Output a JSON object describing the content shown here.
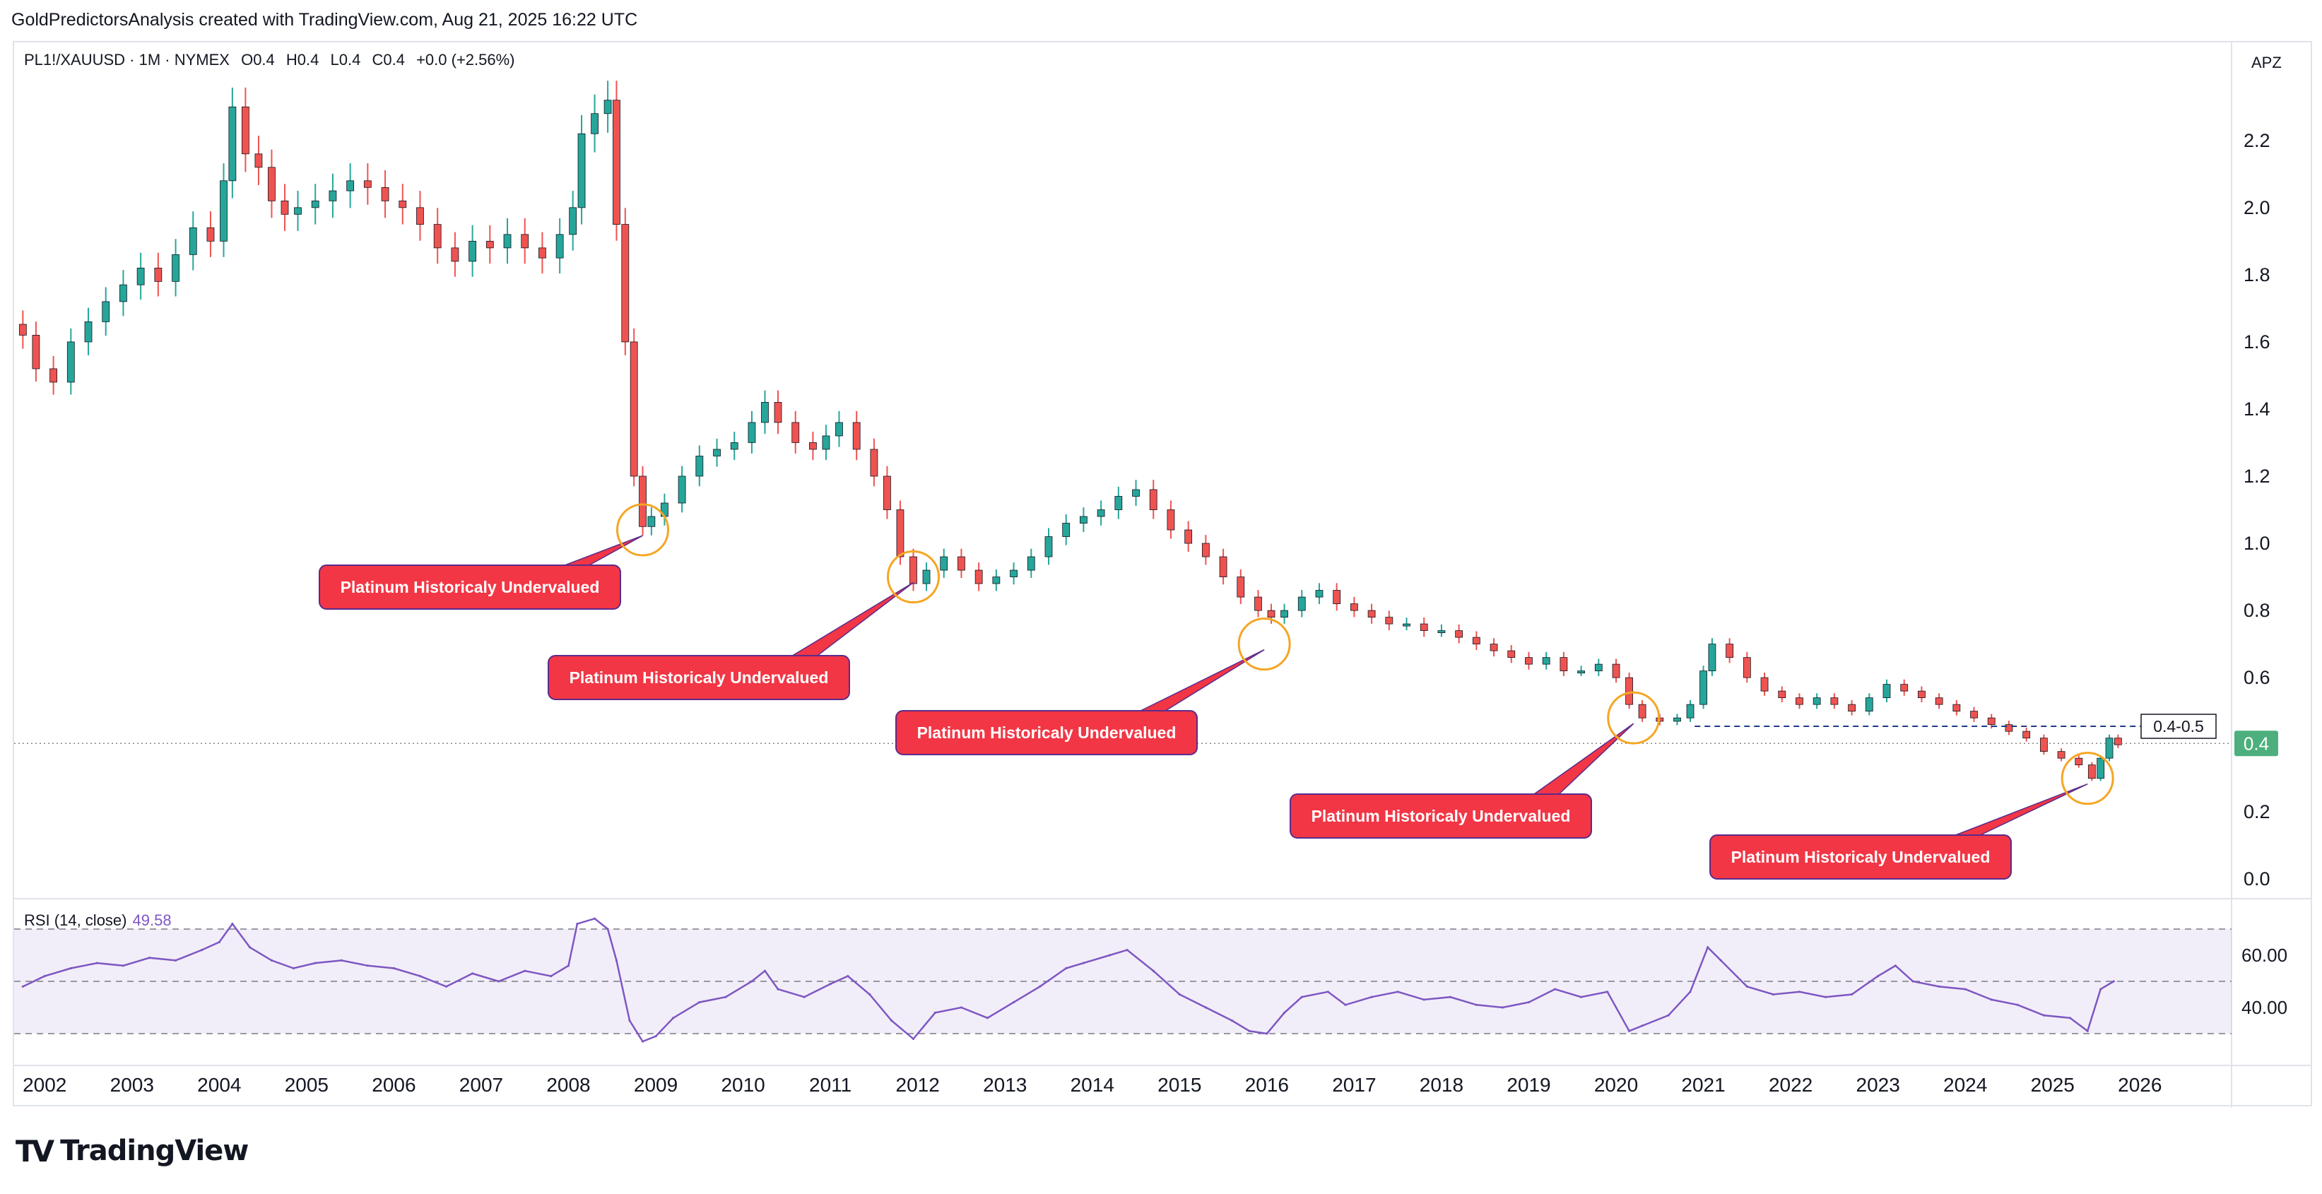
{
  "header": {
    "text": "GoldPredictorsAnalysis created with TradingView.com, Aug 21, 2025 16:22 UTC"
  },
  "legend": {
    "symbol": "PL1!/XAUUSD · 1M · NYMEX",
    "o": "O0.4",
    "h": "H0.4",
    "l": "L0.4",
    "c": "C0.4",
    "change": "+0.0 (+2.56%)"
  },
  "scale_mode": "APZ",
  "rsi_label": {
    "text": "RSI (14, close)",
    "value": "49.58"
  },
  "brand": {
    "logo": "TV",
    "text": "TradingView"
  },
  "colors": {
    "up": "#26a69a",
    "down": "#ef5350",
    "rsi": "#7e57c2",
    "callout": "#f23645",
    "circle": "#f5a623",
    "price_tag": "#4caf7d"
  },
  "chart_data": [
    {
      "type": "candlestick",
      "title": "PL1!/XAUUSD · 1M · NYMEX",
      "x": [
        "2002",
        "2003",
        "2004",
        "2005",
        "2006",
        "2007",
        "2008",
        "2009",
        "2010",
        "2011",
        "2012",
        "2013",
        "2014",
        "2015",
        "2016",
        "2017",
        "2018",
        "2019",
        "2020",
        "2021",
        "2022",
        "2023",
        "2024",
        "2025",
        "2026"
      ],
      "y_ticks": [
        "2.2",
        "2.0",
        "1.8",
        "1.6",
        "1.4",
        "1.2",
        "1.0",
        "0.8",
        "0.6",
        "0.4",
        "0.2",
        "0.0"
      ],
      "ylim": [
        -0.05,
        2.45
      ],
      "series": [
        {
          "values": [
            [
              2001.75,
              1.62
            ],
            [
              2001.9,
              1.52
            ],
            [
              2002.1,
              1.48
            ],
            [
              2002.3,
              1.6
            ],
            [
              2002.5,
              1.66
            ],
            [
              2002.7,
              1.72
            ],
            [
              2002.9,
              1.77
            ],
            [
              2003.1,
              1.82
            ],
            [
              2003.3,
              1.78
            ],
            [
              2003.5,
              1.86
            ],
            [
              2003.7,
              1.94
            ],
            [
              2003.9,
              1.9
            ],
            [
              2004.05,
              2.08
            ],
            [
              2004.15,
              2.3
            ],
            [
              2004.3,
              2.16
            ],
            [
              2004.45,
              2.12
            ],
            [
              2004.6,
              2.02
            ],
            [
              2004.75,
              1.98
            ],
            [
              2004.9,
              2.0
            ],
            [
              2005.1,
              2.02
            ],
            [
              2005.3,
              2.05
            ],
            [
              2005.5,
              2.08
            ],
            [
              2005.7,
              2.06
            ],
            [
              2005.9,
              2.02
            ],
            [
              2006.1,
              2.0
            ],
            [
              2006.3,
              1.95
            ],
            [
              2006.5,
              1.88
            ],
            [
              2006.7,
              1.84
            ],
            [
              2006.9,
              1.9
            ],
            [
              2007.1,
              1.88
            ],
            [
              2007.3,
              1.92
            ],
            [
              2007.5,
              1.88
            ],
            [
              2007.7,
              1.85
            ],
            [
              2007.9,
              1.92
            ],
            [
              2008.05,
              2.0
            ],
            [
              2008.15,
              2.22
            ],
            [
              2008.3,
              2.28
            ],
            [
              2008.45,
              2.32
            ],
            [
              2008.55,
              1.95
            ],
            [
              2008.65,
              1.6
            ],
            [
              2008.75,
              1.2
            ],
            [
              2008.85,
              1.05
            ],
            [
              2008.95,
              1.08
            ],
            [
              2009.1,
              1.12
            ],
            [
              2009.3,
              1.2
            ],
            [
              2009.5,
              1.26
            ],
            [
              2009.7,
              1.28
            ],
            [
              2009.9,
              1.3
            ],
            [
              2010.1,
              1.36
            ],
            [
              2010.25,
              1.42
            ],
            [
              2010.4,
              1.36
            ],
            [
              2010.6,
              1.3
            ],
            [
              2010.8,
              1.28
            ],
            [
              2010.95,
              1.32
            ],
            [
              2011.1,
              1.36
            ],
            [
              2011.3,
              1.28
            ],
            [
              2011.5,
              1.2
            ],
            [
              2011.65,
              1.1
            ],
            [
              2011.8,
              0.96
            ],
            [
              2011.95,
              0.88
            ],
            [
              2012.1,
              0.92
            ],
            [
              2012.3,
              0.96
            ],
            [
              2012.5,
              0.92
            ],
            [
              2012.7,
              0.88
            ],
            [
              2012.9,
              0.9
            ],
            [
              2013.1,
              0.92
            ],
            [
              2013.3,
              0.96
            ],
            [
              2013.5,
              1.02
            ],
            [
              2013.7,
              1.06
            ],
            [
              2013.9,
              1.08
            ],
            [
              2014.1,
              1.1
            ],
            [
              2014.3,
              1.14
            ],
            [
              2014.5,
              1.16
            ],
            [
              2014.7,
              1.1
            ],
            [
              2014.9,
              1.04
            ],
            [
              2015.1,
              1.0
            ],
            [
              2015.3,
              0.96
            ],
            [
              2015.5,
              0.9
            ],
            [
              2015.7,
              0.84
            ],
            [
              2015.9,
              0.8
            ],
            [
              2016.05,
              0.78
            ],
            [
              2016.2,
              0.8
            ],
            [
              2016.4,
              0.84
            ],
            [
              2016.6,
              0.86
            ],
            [
              2016.8,
              0.82
            ],
            [
              2017.0,
              0.8
            ],
            [
              2017.2,
              0.78
            ],
            [
              2017.4,
              0.76
            ],
            [
              2017.6,
              0.76
            ],
            [
              2017.8,
              0.74
            ],
            [
              2018.0,
              0.74
            ],
            [
              2018.2,
              0.72
            ],
            [
              2018.4,
              0.7
            ],
            [
              2018.6,
              0.68
            ],
            [
              2018.8,
              0.66
            ],
            [
              2019.0,
              0.64
            ],
            [
              2019.2,
              0.66
            ],
            [
              2019.4,
              0.62
            ],
            [
              2019.6,
              0.62
            ],
            [
              2019.8,
              0.64
            ],
            [
              2020.0,
              0.6
            ],
            [
              2020.15,
              0.52
            ],
            [
              2020.3,
              0.48
            ],
            [
              2020.5,
              0.47
            ],
            [
              2020.7,
              0.48
            ],
            [
              2020.85,
              0.52
            ],
            [
              2021.0,
              0.62
            ],
            [
              2021.1,
              0.7
            ],
            [
              2021.3,
              0.66
            ],
            [
              2021.5,
              0.6
            ],
            [
              2021.7,
              0.56
            ],
            [
              2021.9,
              0.54
            ],
            [
              2022.1,
              0.52
            ],
            [
              2022.3,
              0.54
            ],
            [
              2022.5,
              0.52
            ],
            [
              2022.7,
              0.5
            ],
            [
              2022.9,
              0.54
            ],
            [
              2023.1,
              0.58
            ],
            [
              2023.3,
              0.56
            ],
            [
              2023.5,
              0.54
            ],
            [
              2023.7,
              0.52
            ],
            [
              2023.9,
              0.5
            ],
            [
              2024.1,
              0.48
            ],
            [
              2024.3,
              0.46
            ],
            [
              2024.5,
              0.44
            ],
            [
              2024.7,
              0.42
            ],
            [
              2024.9,
              0.38
            ],
            [
              2025.1,
              0.36
            ],
            [
              2025.3,
              0.34
            ],
            [
              2025.45,
              0.3
            ],
            [
              2025.55,
              0.36
            ],
            [
              2025.65,
              0.42
            ],
            [
              2025.75,
              0.4
            ]
          ]
        }
      ],
      "annotations": {
        "callouts": [
          "Platinum Historicaly Undervalued",
          "Platinum Historicaly Undervalued",
          "Platinum Historicaly Undervalued",
          "Platinum Historicaly Undervalued",
          "Platinum Historicaly Undervalued"
        ],
        "circled_lows": [
          [
            2008.85,
            1.04
          ],
          [
            2011.95,
            0.9
          ],
          [
            2015.97,
            0.7
          ],
          [
            2020.2,
            0.48
          ],
          [
            2025.4,
            0.3
          ]
        ],
        "range_label": "0.4-0.5",
        "range_level": 0.455,
        "last_price": "0.4",
        "last_price_level": 0.404
      }
    },
    {
      "type": "line",
      "title": "RSI (14, close)",
      "y_ticks": [
        "60.00",
        "40.00"
      ],
      "ylim": [
        20,
        80
      ],
      "band": [
        30,
        70
      ],
      "mid": 50,
      "series": [
        {
          "name": "RSI (14, close)",
          "values": [
            [
              2001.75,
              48
            ],
            [
              2002.0,
              52
            ],
            [
              2002.3,
              55
            ],
            [
              2002.6,
              57
            ],
            [
              2002.9,
              56
            ],
            [
              2003.2,
              59
            ],
            [
              2003.5,
              58
            ],
            [
              2003.8,
              62
            ],
            [
              2004.0,
              65
            ],
            [
              2004.15,
              72
            ],
            [
              2004.35,
              63
            ],
            [
              2004.6,
              58
            ],
            [
              2004.85,
              55
            ],
            [
              2005.1,
              57
            ],
            [
              2005.4,
              58
            ],
            [
              2005.7,
              56
            ],
            [
              2006.0,
              55
            ],
            [
              2006.3,
              52
            ],
            [
              2006.6,
              48
            ],
            [
              2006.9,
              53
            ],
            [
              2007.2,
              50
            ],
            [
              2007.5,
              54
            ],
            [
              2007.8,
              52
            ],
            [
              2008.0,
              56
            ],
            [
              2008.1,
              72
            ],
            [
              2008.3,
              74
            ],
            [
              2008.45,
              70
            ],
            [
              2008.55,
              58
            ],
            [
              2008.7,
              35
            ],
            [
              2008.85,
              27
            ],
            [
              2009.0,
              29
            ],
            [
              2009.2,
              36
            ],
            [
              2009.5,
              42
            ],
            [
              2009.8,
              44
            ],
            [
              2010.1,
              50
            ],
            [
              2010.25,
              54
            ],
            [
              2010.4,
              47
            ],
            [
              2010.7,
              44
            ],
            [
              2011.0,
              49
            ],
            [
              2011.2,
              52
            ],
            [
              2011.45,
              45
            ],
            [
              2011.7,
              35
            ],
            [
              2011.95,
              28
            ],
            [
              2012.2,
              38
            ],
            [
              2012.5,
              40
            ],
            [
              2012.8,
              36
            ],
            [
              2013.1,
              42
            ],
            [
              2013.4,
              48
            ],
            [
              2013.7,
              55
            ],
            [
              2013.9,
              57
            ],
            [
              2014.2,
              60
            ],
            [
              2014.4,
              62
            ],
            [
              2014.7,
              54
            ],
            [
              2015.0,
              45
            ],
            [
              2015.3,
              40
            ],
            [
              2015.6,
              35
            ],
            [
              2015.8,
              31
            ],
            [
              2016.0,
              30
            ],
            [
              2016.2,
              38
            ],
            [
              2016.4,
              44
            ],
            [
              2016.7,
              46
            ],
            [
              2016.9,
              41
            ],
            [
              2017.2,
              44
            ],
            [
              2017.5,
              46
            ],
            [
              2017.8,
              43
            ],
            [
              2018.1,
              44
            ],
            [
              2018.4,
              41
            ],
            [
              2018.7,
              40
            ],
            [
              2019.0,
              42
            ],
            [
              2019.3,
              47
            ],
            [
              2019.6,
              44
            ],
            [
              2019.9,
              46
            ],
            [
              2020.15,
              31
            ],
            [
              2020.3,
              33
            ],
            [
              2020.6,
              37
            ],
            [
              2020.85,
              46
            ],
            [
              2021.05,
              63
            ],
            [
              2021.2,
              58
            ],
            [
              2021.5,
              48
            ],
            [
              2021.8,
              45
            ],
            [
              2022.1,
              46
            ],
            [
              2022.4,
              44
            ],
            [
              2022.7,
              45
            ],
            [
              2023.0,
              52
            ],
            [
              2023.2,
              56
            ],
            [
              2023.4,
              50
            ],
            [
              2023.7,
              48
            ],
            [
              2024.0,
              47
            ],
            [
              2024.3,
              43
            ],
            [
              2024.6,
              41
            ],
            [
              2024.9,
              37
            ],
            [
              2025.2,
              36
            ],
            [
              2025.4,
              31
            ],
            [
              2025.55,
              47
            ],
            [
              2025.7,
              50
            ]
          ]
        }
      ]
    }
  ]
}
